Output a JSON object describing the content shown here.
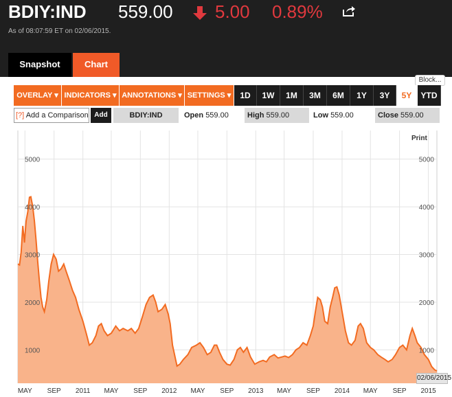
{
  "header": {
    "ticker": "BDIY:IND",
    "price": "559.00",
    "change": "5.00",
    "change_pct": "0.89%",
    "as_of": "As of 08:07:59 ET on 02/06/2015.",
    "change_color": "#e0393e",
    "direction_icon": "arrow-down-icon",
    "share_icon": "share-icon"
  },
  "tabs": [
    {
      "label": "Snapshot"
    },
    {
      "label": "Chart",
      "active": true
    }
  ],
  "block_label": "Block...",
  "toolbar": {
    "menus": [
      {
        "label": "OVERLAY ▾"
      },
      {
        "label": "INDICATORS ▾"
      },
      {
        "label": "ANNOTATIONS ▾"
      },
      {
        "label": "SETTINGS ▾"
      }
    ],
    "periods": [
      {
        "label": "1D"
      },
      {
        "label": "1W"
      },
      {
        "label": "1M"
      },
      {
        "label": "3M"
      },
      {
        "label": "6M"
      },
      {
        "label": "1Y"
      },
      {
        "label": "3Y"
      },
      {
        "label": "5Y",
        "active": true
      },
      {
        "label": "YTD"
      }
    ],
    "accent_color": "#f26b21"
  },
  "infobar": {
    "help": "[?]",
    "compare_placeholder": "Add a Comparison",
    "add_label": "Add",
    "symbol": "BDIY:IND",
    "open_label": "Open",
    "open_value": "559.00",
    "high_label": "High",
    "high_value": "559.00",
    "low_label": "Low",
    "low_value": "559.00",
    "close_label": "Close",
    "close_value": "559.00"
  },
  "chart_data": {
    "type": "area",
    "series": [
      {
        "name": "BDIY:IND",
        "points": [
          [
            "2010-04-01",
            2800
          ],
          [
            "2010-04-08",
            2780
          ],
          [
            "2010-04-15",
            3050
          ],
          [
            "2010-04-22",
            3600
          ],
          [
            "2010-04-29",
            3250
          ],
          [
            "2010-05-06",
            3700
          ],
          [
            "2010-05-13",
            3900
          ],
          [
            "2010-05-20",
            4200
          ],
          [
            "2010-05-26",
            4210
          ],
          [
            "2010-06-03",
            4000
          ],
          [
            "2010-06-10",
            3700
          ],
          [
            "2010-06-17",
            3300
          ],
          [
            "2010-06-24",
            2850
          ],
          [
            "2010-07-01",
            2450
          ],
          [
            "2010-07-08",
            2100
          ],
          [
            "2010-07-15",
            1900
          ],
          [
            "2010-07-22",
            1800
          ],
          [
            "2010-08-01",
            2050
          ],
          [
            "2010-08-10",
            2450
          ],
          [
            "2010-08-20",
            2800
          ],
          [
            "2010-08-30",
            3000
          ],
          [
            "2010-09-10",
            2900
          ],
          [
            "2010-09-20",
            2650
          ],
          [
            "2010-10-01",
            2700
          ],
          [
            "2010-10-12",
            2800
          ],
          [
            "2010-10-22",
            2650
          ],
          [
            "2010-11-05",
            2450
          ],
          [
            "2010-11-18",
            2250
          ],
          [
            "2010-12-01",
            2100
          ],
          [
            "2010-12-15",
            1850
          ],
          [
            "2011-01-01",
            1600
          ],
          [
            "2011-01-15",
            1350
          ],
          [
            "2011-01-28",
            1100
          ],
          [
            "2011-02-10",
            1150
          ],
          [
            "2011-02-25",
            1300
          ],
          [
            "2011-03-08",
            1500
          ],
          [
            "2011-03-20",
            1550
          ],
          [
            "2011-04-01",
            1400
          ],
          [
            "2011-04-15",
            1300
          ],
          [
            "2011-05-01",
            1350
          ],
          [
            "2011-05-20",
            1500
          ],
          [
            "2011-06-05",
            1400
          ],
          [
            "2011-06-20",
            1450
          ],
          [
            "2011-07-10",
            1400
          ],
          [
            "2011-07-25",
            1450
          ],
          [
            "2011-08-10",
            1350
          ],
          [
            "2011-08-25",
            1450
          ],
          [
            "2011-09-10",
            1700
          ],
          [
            "2011-09-25",
            1950
          ],
          [
            "2011-10-10",
            2100
          ],
          [
            "2011-10-25",
            2150
          ],
          [
            "2011-11-05",
            2000
          ],
          [
            "2011-11-15",
            1800
          ],
          [
            "2011-12-01",
            1850
          ],
          [
            "2011-12-15",
            1950
          ],
          [
            "2011-12-28",
            1750
          ],
          [
            "2012-01-05",
            1550
          ],
          [
            "2012-01-15",
            1100
          ],
          [
            "2012-01-28",
            800
          ],
          [
            "2012-02-03",
            660
          ],
          [
            "2012-02-15",
            700
          ],
          [
            "2012-03-01",
            800
          ],
          [
            "2012-03-20",
            900
          ],
          [
            "2012-04-05",
            1050
          ],
          [
            "2012-04-25",
            1100
          ],
          [
            "2012-05-10",
            1150
          ],
          [
            "2012-05-25",
            1050
          ],
          [
            "2012-06-10",
            900
          ],
          [
            "2012-06-25",
            950
          ],
          [
            "2012-07-10",
            1100
          ],
          [
            "2012-07-20",
            1100
          ],
          [
            "2012-08-01",
            950
          ],
          [
            "2012-08-15",
            800
          ],
          [
            "2012-09-01",
            700
          ],
          [
            "2012-09-15",
            680
          ],
          [
            "2012-10-01",
            800
          ],
          [
            "2012-10-15",
            1000
          ],
          [
            "2012-10-28",
            1050
          ],
          [
            "2012-11-10",
            950
          ],
          [
            "2012-11-25",
            1050
          ],
          [
            "2012-12-10",
            850
          ],
          [
            "2012-12-28",
            700
          ],
          [
            "2013-01-15",
            750
          ],
          [
            "2013-02-01",
            780
          ],
          [
            "2013-02-15",
            750
          ],
          [
            "2013-03-01",
            850
          ],
          [
            "2013-03-20",
            900
          ],
          [
            "2013-04-05",
            830
          ],
          [
            "2013-04-20",
            850
          ],
          [
            "2013-05-05",
            870
          ],
          [
            "2013-05-20",
            840
          ],
          [
            "2013-06-05",
            900
          ],
          [
            "2013-06-20",
            1000
          ],
          [
            "2013-07-05",
            1050
          ],
          [
            "2013-07-20",
            1150
          ],
          [
            "2013-08-05",
            1100
          ],
          [
            "2013-08-20",
            1300
          ],
          [
            "2013-09-01",
            1500
          ],
          [
            "2013-09-10",
            1800
          ],
          [
            "2013-09-20",
            2100
          ],
          [
            "2013-10-01",
            2050
          ],
          [
            "2013-10-10",
            1900
          ],
          [
            "2013-10-20",
            1600
          ],
          [
            "2013-11-01",
            1550
          ],
          [
            "2013-11-12",
            1900
          ],
          [
            "2013-11-22",
            2100
          ],
          [
            "2013-12-01",
            2300
          ],
          [
            "2013-12-10",
            2320
          ],
          [
            "2013-12-20",
            2150
          ],
          [
            "2014-01-01",
            1800
          ],
          [
            "2014-01-15",
            1400
          ],
          [
            "2014-01-28",
            1150
          ],
          [
            "2014-02-10",
            1100
          ],
          [
            "2014-02-25",
            1200
          ],
          [
            "2014-03-10",
            1500
          ],
          [
            "2014-03-20",
            1550
          ],
          [
            "2014-04-01",
            1450
          ],
          [
            "2014-04-15",
            1150
          ],
          [
            "2014-05-01",
            1050
          ],
          [
            "2014-05-15",
            1000
          ],
          [
            "2014-06-01",
            900
          ],
          [
            "2014-06-15",
            850
          ],
          [
            "2014-07-01",
            800
          ],
          [
            "2014-07-15",
            750
          ],
          [
            "2014-08-01",
            800
          ],
          [
            "2014-08-15",
            900
          ],
          [
            "2014-09-01",
            1050
          ],
          [
            "2014-09-15",
            1100
          ],
          [
            "2014-10-01",
            1000
          ],
          [
            "2014-10-15",
            1300
          ],
          [
            "2014-10-25",
            1450
          ],
          [
            "2014-11-05",
            1300
          ],
          [
            "2014-11-15",
            1150
          ],
          [
            "2014-12-01",
            1050
          ],
          [
            "2014-12-15",
            900
          ],
          [
            "2015-01-01",
            800
          ],
          [
            "2015-01-15",
            650
          ],
          [
            "2015-01-28",
            580
          ],
          [
            "2015-02-06",
            559
          ]
        ]
      }
    ],
    "x_ticks": [
      {
        "x": "2010-05-01",
        "label": "MAY"
      },
      {
        "x": "2010-09-01",
        "label": "SEP"
      },
      {
        "x": "2011-01-01",
        "label": "2011"
      },
      {
        "x": "2011-05-01",
        "label": "MAY"
      },
      {
        "x": "2011-09-01",
        "label": "SEP"
      },
      {
        "x": "2012-01-01",
        "label": "2012"
      },
      {
        "x": "2012-05-01",
        "label": "MAY"
      },
      {
        "x": "2012-09-01",
        "label": "SEP"
      },
      {
        "x": "2013-01-01",
        "label": "2013"
      },
      {
        "x": "2013-05-01",
        "label": "MAY"
      },
      {
        "x": "2013-09-01",
        "label": "SEP"
      },
      {
        "x": "2014-01-01",
        "label": "2014"
      },
      {
        "x": "2014-05-01",
        "label": "MAY"
      },
      {
        "x": "2014-09-01",
        "label": "SEP"
      },
      {
        "x": "2015-01-01",
        "label": "2015"
      }
    ],
    "y_ticks": [
      1000,
      2000,
      3000,
      4000,
      5000
    ],
    "x_range": [
      "2010-04-01",
      "2015-02-06"
    ],
    "ylim": [
      300,
      5600
    ],
    "grid": true,
    "line_color": "#f26b21",
    "fill_color": "#f9b38a",
    "print_label": "Print",
    "end_date_label": "02/06/2015"
  }
}
